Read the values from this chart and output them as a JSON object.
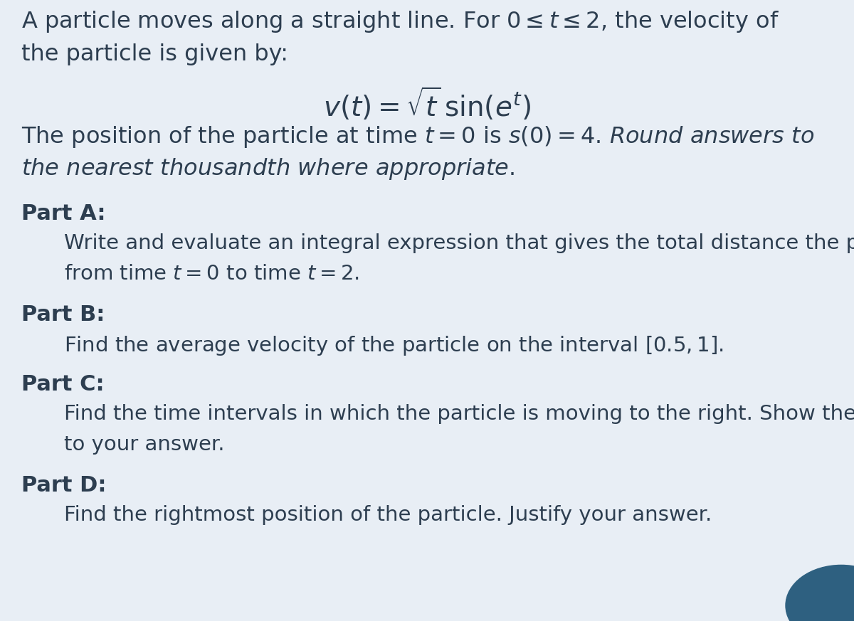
{
  "background_color": "#e8eef5",
  "text_color": "#2d3e50",
  "title_line1": "A particle moves along a straight line. For $0 \\leq t \\leq 2$, the velocity of",
  "title_line2": "the particle is given by:",
  "formula": "$v(t) = \\sqrt{t}\\,\\sin(e^t)$",
  "context_line1": "The position of the particle at time $t = 0$ is $s(0) = 4$. $\\mathit{Round\\ answers\\ to}$",
  "context_line2": "$\\mathit{the\\ nearest\\ thousandth\\ where\\ appropriate.}$",
  "part_a_label": "Part A:",
  "part_a_text1": "Write and evaluate an integral expression that gives the total distance the particle traveled",
  "part_a_text2": "from time $t = 0$ to time $t = 2$.",
  "part_b_label": "Part B:",
  "part_b_text": "Find the average velocity of the particle on the interval $[0.5, 1]$.",
  "part_c_label": "Part C:",
  "part_c_text1": "Find the time intervals in which the particle is moving to the right. Show the work that leads",
  "part_c_text2": "to your answer.",
  "part_d_label": "Part D:",
  "part_d_text": "Find the rightmost position of the particle. Justify your answer.",
  "circle_color": "#2e6080",
  "fs_main": 23,
  "fs_formula": 28,
  "fs_part_label": 22,
  "fs_part_text": 21,
  "lm": 0.025,
  "lm_indent": 0.075
}
